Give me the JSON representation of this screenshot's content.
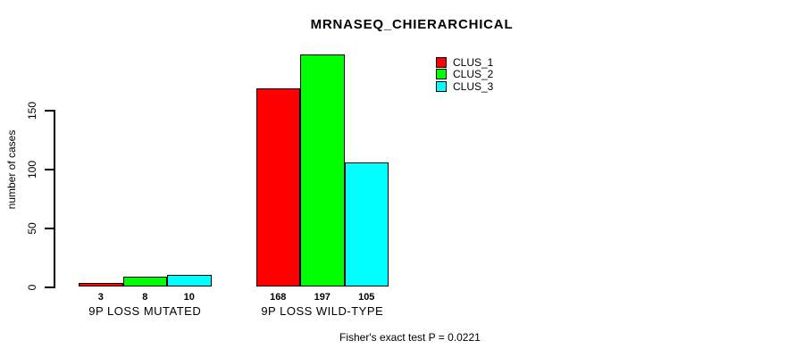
{
  "chart_data": {
    "type": "bar",
    "title": "MRNASEQ_CHIERARCHICAL",
    "ylabel": "number of cases",
    "xlabel": "",
    "categories": [
      "9P LOSS MUTATED",
      "9P LOSS WILD-TYPE"
    ],
    "series": [
      {
        "name": "CLUS_1",
        "color": "#ff0000",
        "values": [
          3,
          168
        ]
      },
      {
        "name": "CLUS_2",
        "color": "#00ff00",
        "values": [
          8,
          197
        ]
      },
      {
        "name": "CLUS_3",
        "color": "#00ffff",
        "values": [
          10,
          105
        ]
      }
    ],
    "yticks": [
      0,
      50,
      100,
      150
    ],
    "ylim": [
      0,
      210
    ],
    "grid": false,
    "legend_position": "top-right",
    "bar_border_color": "#000000",
    "value_labels": true,
    "annotation": "Fisher's exact test P = 0.0221"
  }
}
